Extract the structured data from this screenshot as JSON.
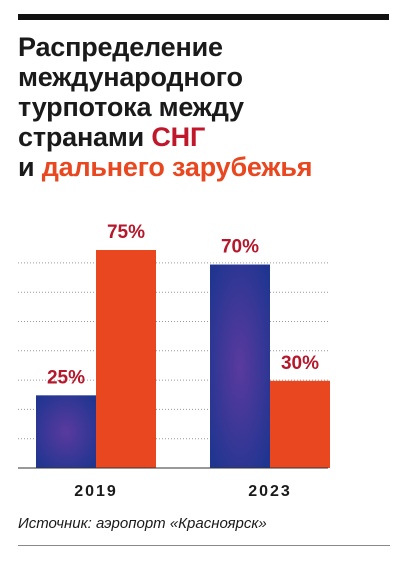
{
  "title": {
    "line1": "Распределение",
    "line2": "международного",
    "line3": "турпотока между",
    "line4_prefix": "странами ",
    "line4_highlight": "СНГ",
    "line5_prefix": "и ",
    "line5_highlight": "дальнего зарубежья"
  },
  "source": "Источник: аэропорт «Красноярск»",
  "colors": {
    "cis_bar_center": "#5a3a9e",
    "cis_bar_edge": "#1f3590",
    "far_abroad_bar": "#e84720",
    "value_label": "#b5172b",
    "grid": "#9a9a9a",
    "axis": "#333333"
  },
  "chart_data": {
    "type": "bar",
    "title": "Распределение международного турпотока между странами СНГ и дальнего зарубежья",
    "categories": [
      "2019",
      "2023"
    ],
    "series": [
      {
        "name": "СНГ",
        "values": [
          25,
          70
        ],
        "labels": [
          "25%",
          "70%"
        ]
      },
      {
        "name": "дальнего зарубежья",
        "values": [
          75,
          30
        ],
        "labels": [
          "75%",
          "30%"
        ]
      }
    ],
    "ylim": [
      0,
      75
    ],
    "grid": true,
    "xlabel": "",
    "ylabel": ""
  }
}
